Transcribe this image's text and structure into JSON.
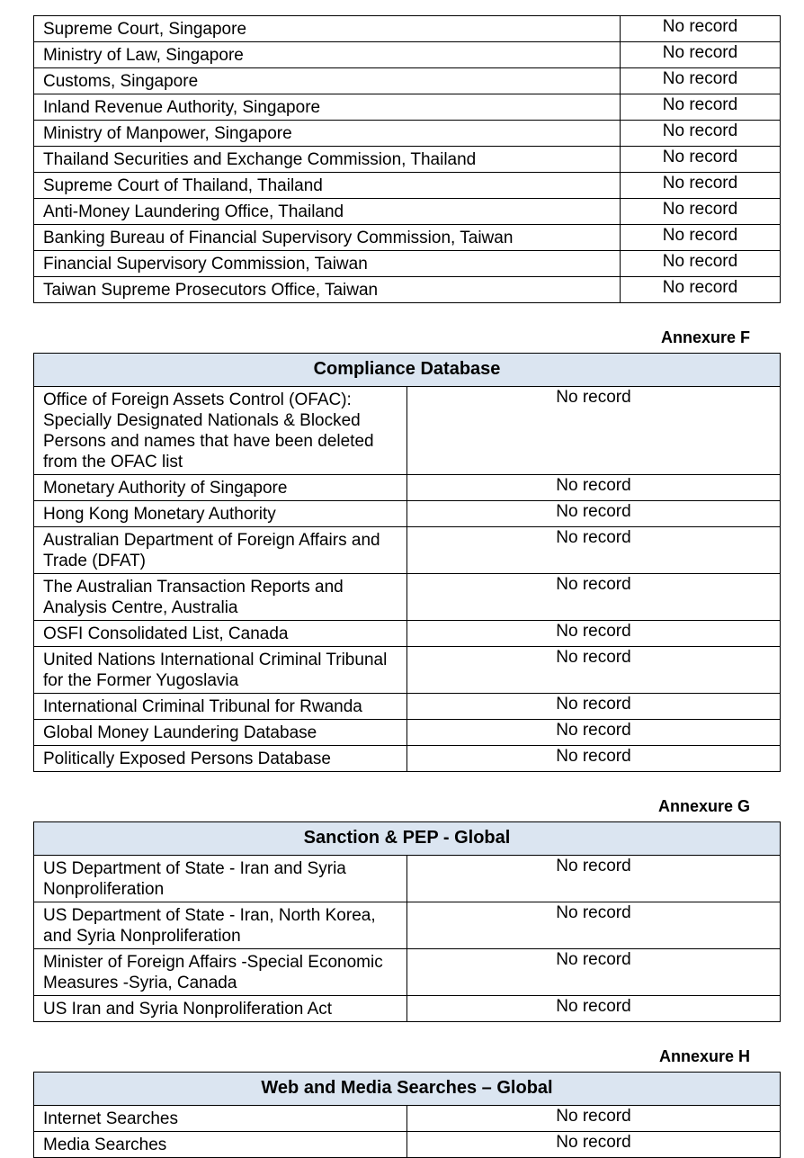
{
  "tables": [
    {
      "rows": [
        [
          "Supreme Court, Singapore",
          "No record"
        ],
        [
          "Ministry of Law, Singapore",
          "No record"
        ],
        [
          "Customs, Singapore",
          "No record"
        ],
        [
          "Inland Revenue Authority, Singapore",
          "No record"
        ],
        [
          "Ministry of Manpower, Singapore",
          "No record"
        ],
        [
          "Thailand Securities and Exchange Commission, Thailand",
          "No record"
        ],
        [
          "Supreme Court of Thailand, Thailand",
          "No record"
        ],
        [
          "Anti-Money Laundering Office, Thailand",
          "No record"
        ],
        [
          "Banking Bureau of Financial Supervisory Commission, Taiwan",
          "No record"
        ],
        [
          "Financial Supervisory Commission, Taiwan",
          "No record"
        ],
        [
          "Taiwan Supreme Prosecutors Office, Taiwan",
          "No record"
        ]
      ]
    },
    {
      "annexure": "Annexure F",
      "title": "Compliance Database",
      "rows": [
        [
          "Office of Foreign Assets Control (OFAC): Specially Designated Nationals & Blocked Persons and names that have been deleted from the OFAC list",
          "No record"
        ],
        [
          "Monetary Authority of Singapore",
          "No record"
        ],
        [
          "Hong Kong Monetary Authority",
          "No record"
        ],
        [
          "Australian Department of Foreign Affairs and Trade (DFAT)",
          "No record"
        ],
        [
          "The Australian Transaction Reports and Analysis Centre, Australia",
          "No record"
        ],
        [
          "OSFI Consolidated List, Canada",
          "No record"
        ],
        [
          "United Nations International Criminal Tribunal for the Former Yugoslavia",
          "No record"
        ],
        [
          "International Criminal Tribunal for Rwanda",
          "No record"
        ],
        [
          "Global Money Laundering Database",
          "No record"
        ],
        [
          "Politically Exposed Persons Database",
          "No record"
        ]
      ]
    },
    {
      "annexure": "Annexure G",
      "title": "Sanction & PEP - Global",
      "rows": [
        [
          "US Department of State - Iran and Syria Nonproliferation",
          "No record"
        ],
        [
          "US Department of State - Iran, North Korea, and Syria Nonproliferation",
          "No record"
        ],
        [
          "Minister of Foreign Affairs -Special Economic Measures -Syria, Canada",
          "No record"
        ],
        [
          "US Iran and Syria Nonproliferation Act",
          "No record"
        ]
      ]
    },
    {
      "annexure": "Annexure H",
      "title": "Web and Media Searches – Global",
      "rows": [
        [
          "Internet Searches",
          "No record"
        ],
        [
          "Media Searches",
          "No record"
        ]
      ]
    }
  ]
}
